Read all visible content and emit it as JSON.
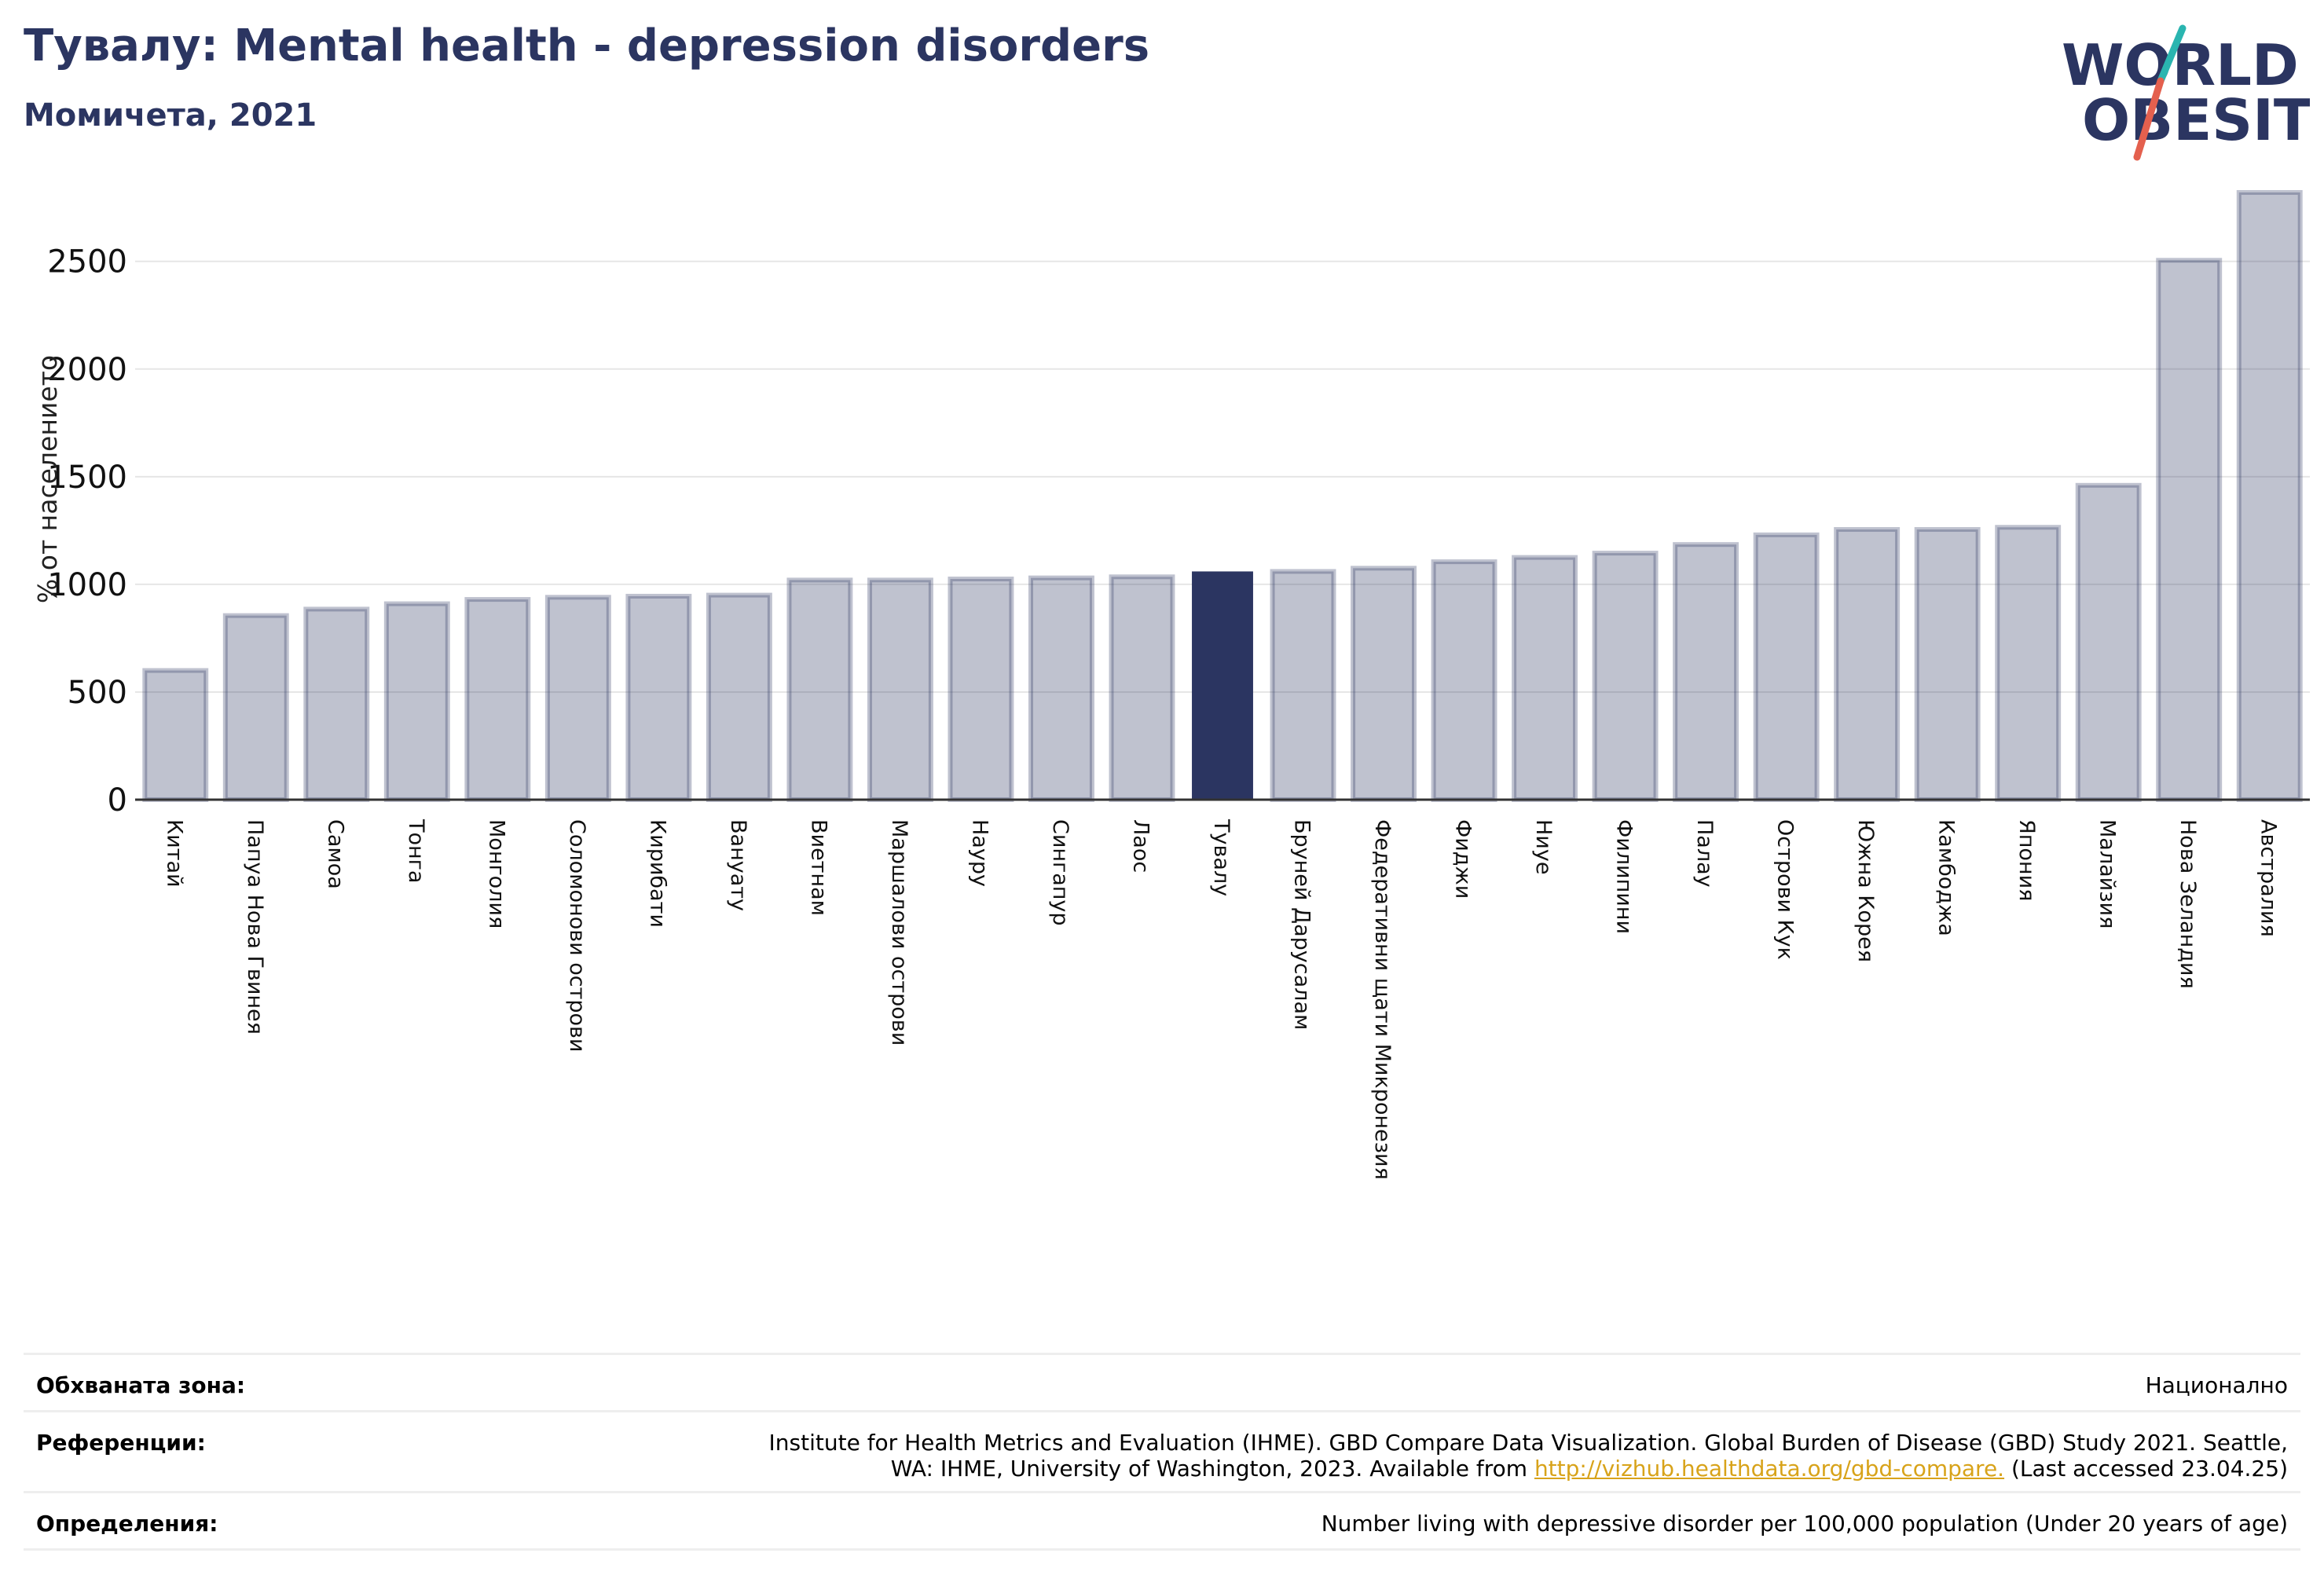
{
  "header": {
    "title": "Тувалу: Mental health - depression disorders",
    "subtitle": "Момичета, 2021"
  },
  "logo": {
    "line1": "WORLD",
    "line2": "OBESITY",
    "colors": {
      "text": "#2b3561",
      "slash_red": "#e4604e",
      "slash_teal": "#2ab5b0"
    }
  },
  "chart_data": {
    "type": "bar",
    "title": "Тувалу: Mental health - depression disorders",
    "subtitle": "Момичета, 2021",
    "ylabel": "% от населението",
    "xlabel": "",
    "ylim": [
      0,
      2820
    ],
    "yticks": [
      0,
      500,
      1000,
      1500,
      2000,
      2500
    ],
    "grid": true,
    "highlight": "Тувалу",
    "colors": {
      "bar": "#2b3561",
      "highlight": "#2b3561"
    },
    "categories": [
      "Китай",
      "Папуа Нова Гвинея",
      "Самоа",
      "Тонга",
      "Монголия",
      "Соломонови острови",
      "Кирибати",
      "Вануату",
      "Виетнам",
      "Маршалови острови",
      "Науру",
      "Сингапур",
      "Лаос",
      "Тувалу",
      "Бруней Дарусалам",
      "Федеративни щати Микронезия",
      "Фиджи",
      "Ниуе",
      "Филипини",
      "Палау",
      "Острови Кук",
      "Южна Корея",
      "Камбоджа",
      "Япония",
      "Малайзия",
      "Нова Зеландия",
      "Австралия"
    ],
    "values": [
      600,
      855,
      885,
      910,
      930,
      940,
      945,
      950,
      1020,
      1020,
      1025,
      1030,
      1035,
      1060,
      1060,
      1075,
      1105,
      1125,
      1145,
      1185,
      1230,
      1255,
      1255,
      1265,
      1460,
      2505,
      2820
    ]
  },
  "footer": {
    "area_label": "Обхваната зона:",
    "area_value": "Национално",
    "references_label": "Референции:",
    "references_line1": "Institute for Health Metrics and Evaluation (IHME). GBD Compare Data Visualization. Global Burden of Disease (GBD) Study 2021. Seattle,",
    "references_line2_pre": "WA: IHME, University of Washington, 2023. Available from ",
    "references_link": "http://vizhub.healthdata.org/gbd-compare.",
    "references_line2_post": " (Last accessed 23.04.25)",
    "definitions_label": "Определения:",
    "definitions_value": "Number living with depressive disorder per 100,000 population (Under 20 years of age)"
  }
}
